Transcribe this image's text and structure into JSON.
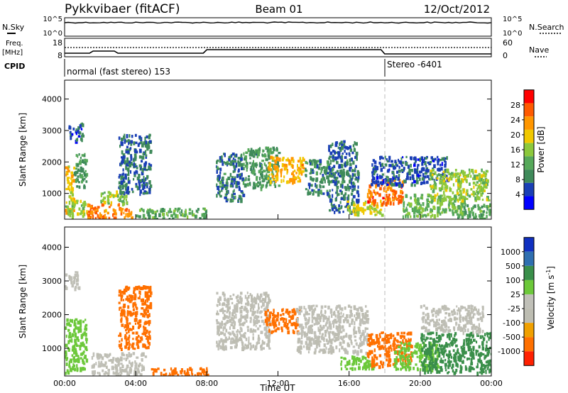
{
  "header": {
    "station": "Pykkvibaer (fitACF)",
    "beam": "Beam 01",
    "date": "12/Oct/2012"
  },
  "top_panels": {
    "nsky_label": "N.Sky",
    "nsky_ticks": [
      "10^5",
      "10^0"
    ],
    "nsearch_label": "N.Search",
    "nsearch_ticks": [
      "10^5",
      "10^0"
    ],
    "freq_label": "Freq.",
    "freq_unit": "[MHz]",
    "freq_ticks": [
      "18",
      "8"
    ],
    "nave_label": "Nave",
    "nave_ticks": [
      "60",
      "0"
    ],
    "cpid_label": "CPID",
    "cpid_modes": [
      {
        "text": "normal (fast stereo) 153",
        "start_hour": 0
      },
      {
        "text": "Stereo -6401",
        "start_hour": 18
      }
    ]
  },
  "colors": {
    "power_scale": [
      "#0000ff",
      "#1a3fb5",
      "#3f8a5a",
      "#56a85a",
      "#8cc83c",
      "#f0c800",
      "#ff9600",
      "#ff5a00",
      "#ff0000"
    ],
    "velocity_scale": [
      "#1030c0",
      "#2f6fb0",
      "#3a8f4a",
      "#6cc83a",
      "#c0c0b8",
      "#bdbdb2",
      "#f0a000",
      "#ff7000",
      "#ff2000"
    ],
    "panel_border": "#000000",
    "mode_change_line": "#bbbbbb"
  },
  "chart_data": [
    {
      "type": "heatmap",
      "name": "power",
      "ylabel": "Slant Range [km]",
      "ylim": [
        180,
        4600
      ],
      "yticks": [
        "1000",
        "2000",
        "3000",
        "4000"
      ],
      "colorbar_label": "Power [dB]",
      "colorbar_ticks": [
        "4",
        "8",
        "12",
        "16",
        "20",
        "24",
        "28"
      ],
      "colorbar_range": [
        0,
        32
      ],
      "echo_regions": [
        {
          "t0": 0.0,
          "t1": 0.5,
          "r0": 400,
          "r1": 1900,
          "v": 20
        },
        {
          "t0": 0.0,
          "t1": 1.2,
          "r0": 300,
          "r1": 800,
          "v": 16
        },
        {
          "t0": 0.2,
          "t1": 1.0,
          "r0": 2700,
          "r1": 3300,
          "v": 6
        },
        {
          "t0": 0.5,
          "t1": 1.2,
          "r0": 1200,
          "r1": 2300,
          "v": 10
        },
        {
          "t0": 1.2,
          "t1": 3.8,
          "r0": 250,
          "r1": 700,
          "v": 24
        },
        {
          "t0": 2.0,
          "t1": 3.5,
          "r0": 700,
          "r1": 1100,
          "v": 16
        },
        {
          "t0": 3.0,
          "t1": 4.8,
          "r0": 1000,
          "r1": 2900,
          "v": 7
        },
        {
          "t0": 4.0,
          "t1": 8.0,
          "r0": 200,
          "r1": 550,
          "v": 12
        },
        {
          "t0": 8.5,
          "t1": 10.0,
          "r0": 800,
          "r1": 2300,
          "v": 8
        },
        {
          "t0": 10.0,
          "t1": 12.0,
          "r0": 1200,
          "r1": 2500,
          "v": 10
        },
        {
          "t0": 11.4,
          "t1": 13.4,
          "r0": 1400,
          "r1": 2200,
          "v": 22
        },
        {
          "t0": 13.5,
          "t1": 14.8,
          "r0": 1000,
          "r1": 2100,
          "v": 9
        },
        {
          "t0": 14.8,
          "t1": 16.5,
          "r0": 400,
          "r1": 2700,
          "v": 8
        },
        {
          "t0": 15.8,
          "t1": 17.8,
          "r0": 350,
          "r1": 800,
          "v": 18
        },
        {
          "t0": 17.0,
          "t1": 19.0,
          "r0": 700,
          "r1": 1500,
          "v": 26
        },
        {
          "t0": 17.2,
          "t1": 21.5,
          "r0": 1300,
          "r1": 2200,
          "v": 6
        },
        {
          "t0": 19.0,
          "t1": 22.5,
          "r0": 300,
          "r1": 1000,
          "v": 14
        },
        {
          "t0": 20.5,
          "t1": 23.8,
          "r0": 800,
          "r1": 1800,
          "v": 16
        },
        {
          "t0": 22.0,
          "t1": 24.0,
          "r0": 200,
          "r1": 700,
          "v": 12
        }
      ]
    },
    {
      "type": "heatmap",
      "name": "velocity",
      "ylabel": "Slant Range [km]",
      "ylim": [
        180,
        4600
      ],
      "yticks": [
        "1000",
        "2000",
        "3000",
        "4000"
      ],
      "colorbar_label": "Velocity [m s",
      "colorbar_unit_exp": "-1",
      "colorbar_ticks": [
        "1000",
        "500",
        "100",
        "25",
        "-25",
        "-100",
        "-500",
        "-1000"
      ],
      "xlabel": "Time UT",
      "xticks": [
        "00:00",
        "04:00",
        "08:00",
        "12:00",
        "16:00",
        "20:00",
        "00:00"
      ],
      "xlim": [
        0,
        24
      ],
      "echo_regions": [
        {
          "t0": 0.0,
          "t1": 1.2,
          "r0": 300,
          "r1": 1900,
          "v": 40
        },
        {
          "t0": 0.0,
          "t1": 0.8,
          "r0": 2800,
          "r1": 3300,
          "v": 0
        },
        {
          "t0": 1.5,
          "t1": 4.5,
          "r0": 250,
          "r1": 900,
          "v": 0
        },
        {
          "t0": 3.0,
          "t1": 4.8,
          "r0": 1000,
          "r1": 2900,
          "v": -150
        },
        {
          "t0": 4.8,
          "t1": 8.0,
          "r0": 200,
          "r1": 450,
          "v": -120
        },
        {
          "t0": 8.5,
          "t1": 11.5,
          "r0": 1000,
          "r1": 2700,
          "v": 0
        },
        {
          "t0": 11.2,
          "t1": 13.2,
          "r0": 1500,
          "r1": 2200,
          "v": -400
        },
        {
          "t0": 13.0,
          "t1": 17.0,
          "r0": 900,
          "r1": 2300,
          "v": 0
        },
        {
          "t0": 15.5,
          "t1": 17.5,
          "r0": 400,
          "r1": 800,
          "v": 80
        },
        {
          "t0": 17.0,
          "t1": 19.5,
          "r0": 500,
          "r1": 1500,
          "v": -150
        },
        {
          "t0": 18.5,
          "t1": 21.0,
          "r0": 400,
          "r1": 1200,
          "v": 60
        },
        {
          "t0": 20.0,
          "t1": 24.0,
          "r0": 300,
          "r1": 1500,
          "v": 200
        },
        {
          "t0": 20.0,
          "t1": 23.5,
          "r0": 1500,
          "r1": 2300,
          "v": 0
        }
      ]
    }
  ]
}
